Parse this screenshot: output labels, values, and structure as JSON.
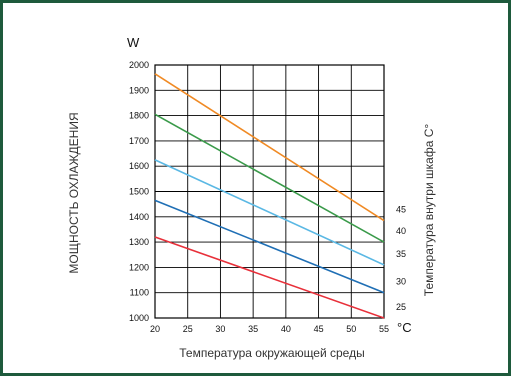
{
  "chart_data": {
    "type": "line",
    "x_unit": "°C",
    "y_unit": "W",
    "xlabel": "Температура окружающей среды",
    "ylabel": "МОЩНОСТЬ ОХЛАЖДЕНИЯ",
    "right_label": "Температура внутри шкафа C°",
    "xlim": [
      20,
      55
    ],
    "ylim": [
      1000,
      2000
    ],
    "x_ticks": [
      20,
      25,
      30,
      35,
      40,
      45,
      50,
      55
    ],
    "y_ticks": [
      1000,
      1100,
      1200,
      1300,
      1400,
      1500,
      1600,
      1700,
      1800,
      1900,
      2000
    ],
    "grid": true,
    "series": [
      {
        "name": "25",
        "color": "#e8303a",
        "x": [
          20,
          55
        ],
        "y": [
          1320,
          1000
        ]
      },
      {
        "name": "30",
        "color": "#1f6fb5",
        "x": [
          20,
          55
        ],
        "y": [
          1465,
          1100
        ]
      },
      {
        "name": "35",
        "color": "#5ab8e4",
        "x": [
          20,
          55
        ],
        "y": [
          1625,
          1210
        ]
      },
      {
        "name": "40",
        "color": "#3a9a4a",
        "x": [
          20,
          55
        ],
        "y": [
          1805,
          1300
        ]
      },
      {
        "name": "45",
        "color": "#f08a24",
        "x": [
          20,
          55
        ],
        "y": [
          1965,
          1385
        ]
      }
    ]
  }
}
